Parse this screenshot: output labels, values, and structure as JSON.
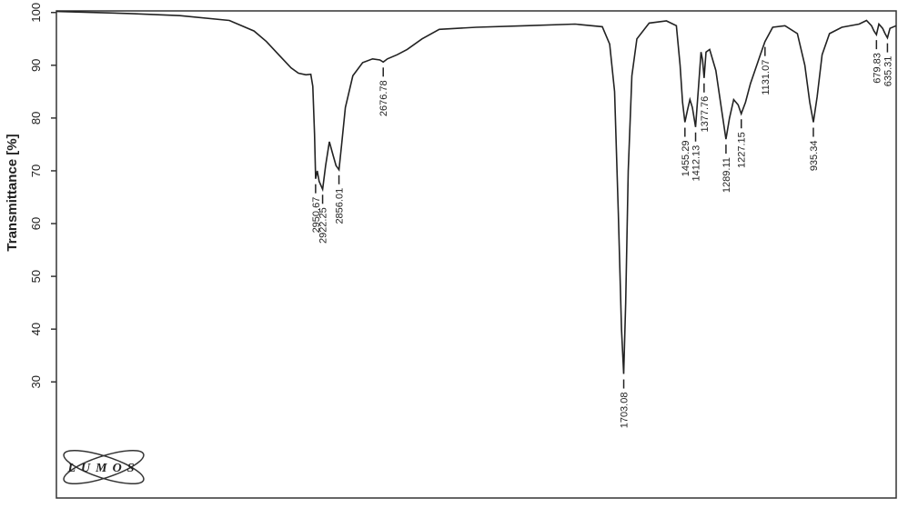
{
  "chart_data": {
    "type": "line",
    "y_label": "Transmittance [%]",
    "logo": "LUMOS",
    "color": "#222222",
    "xlim": [
      4000,
      600
    ],
    "ylim": [
      8,
      100.3
    ],
    "yticks": [
      30,
      40,
      50,
      60,
      70,
      80,
      90,
      100
    ],
    "x": [
      4000,
      3700,
      3500,
      3300,
      3200,
      3150,
      3100,
      3050,
      3020,
      2990,
      2970,
      2962,
      2955,
      2950.67,
      2944,
      2936,
      2922.25,
      2910,
      2895,
      2880,
      2868,
      2856.01,
      2845,
      2830,
      2800,
      2760,
      2720,
      2690,
      2676.78,
      2660,
      2620,
      2580,
      2520,
      2450,
      2300,
      2100,
      1900,
      1790,
      1760,
      1740,
      1725,
      1712,
      1703.08,
      1695,
      1685,
      1670,
      1650,
      1600,
      1530,
      1490,
      1475,
      1465,
      1455.29,
      1445,
      1435,
      1425,
      1412.13,
      1400,
      1390,
      1384,
      1377.76,
      1370,
      1355,
      1330,
      1305,
      1289.11,
      1275,
      1258,
      1240,
      1227.15,
      1210,
      1190,
      1150,
      1131.07,
      1100,
      1050,
      1000,
      970,
      950,
      935.34,
      920,
      900,
      870,
      820,
      750,
      720,
      700,
      690,
      679.83,
      670,
      655,
      645,
      635.31,
      625,
      600
    ],
    "values": [
      100.2,
      99.8,
      99.4,
      98.5,
      96.5,
      94.5,
      92,
      89.5,
      88.5,
      88.2,
      88.3,
      86,
      77,
      68.5,
      70,
      68,
      66.5,
      71,
      75.5,
      73,
      71,
      70.2,
      75,
      82,
      88,
      90.5,
      91.2,
      91,
      90.6,
      91.2,
      92,
      93,
      95,
      96.8,
      97.2,
      97.5,
      97.8,
      97.3,
      94,
      85,
      62,
      40,
      31.5,
      45,
      70,
      88,
      95,
      98,
      98.4,
      97.5,
      90,
      83,
      79.2,
      81.5,
      83.5,
      82,
      78.3,
      86,
      92.5,
      91,
      87.6,
      92.5,
      93,
      89,
      81,
      76,
      80,
      83.5,
      82.5,
      80.8,
      83,
      86.5,
      92,
      94.5,
      97.2,
      97.5,
      96,
      90,
      83,
      79.2,
      84,
      92,
      96,
      97.2,
      97.8,
      98.5,
      97.5,
      96.5,
      95.8,
      97.8,
      97,
      96,
      95.2,
      97,
      97.5
    ],
    "peaks": {
      "x": [
        2950.67,
        2922.25,
        2856.01,
        2676.78,
        1703.08,
        1455.29,
        1412.13,
        1377.76,
        1289.11,
        1227.15,
        1131.07,
        935.34,
        679.83,
        635.31
      ],
      "y": [
        68.5,
        66.5,
        70.2,
        90.6,
        31.5,
        79.2,
        78.3,
        87.6,
        76,
        80.8,
        94.5,
        79.2,
        95.8,
        95.2
      ]
    }
  }
}
